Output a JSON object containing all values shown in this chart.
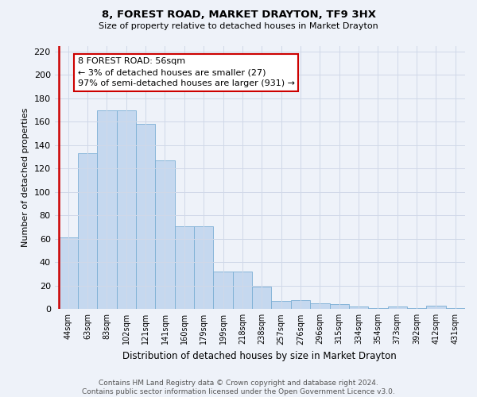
{
  "title": "8, FOREST ROAD, MARKET DRAYTON, TF9 3HX",
  "subtitle": "Size of property relative to detached houses in Market Drayton",
  "xlabel": "Distribution of detached houses by size in Market Drayton",
  "ylabel": "Number of detached properties",
  "bar_labels": [
    "44sqm",
    "63sqm",
    "83sqm",
    "102sqm",
    "121sqm",
    "141sqm",
    "160sqm",
    "179sqm",
    "199sqm",
    "218sqm",
    "238sqm",
    "257sqm",
    "276sqm",
    "296sqm",
    "315sqm",
    "334sqm",
    "354sqm",
    "373sqm",
    "392sqm",
    "412sqm",
    "431sqm"
  ],
  "bar_values": [
    61,
    133,
    170,
    170,
    158,
    127,
    71,
    71,
    32,
    32,
    19,
    7,
    8,
    5,
    4,
    2,
    1,
    2,
    1,
    3,
    1
  ],
  "bar_color": "#c5d8ef",
  "bar_edge_color": "#7aaed4",
  "highlight_color": "#cc0000",
  "annotation_text": "8 FOREST ROAD: 56sqm\n← 3% of detached houses are smaller (27)\n97% of semi-detached houses are larger (931) →",
  "annotation_box_color": "#ffffff",
  "annotation_box_edge_color": "#cc0000",
  "ylim": [
    0,
    225
  ],
  "yticks": [
    0,
    20,
    40,
    60,
    80,
    100,
    120,
    140,
    160,
    180,
    200,
    220
  ],
  "grid_color": "#d0d8e8",
  "footer": "Contains HM Land Registry data © Crown copyright and database right 2024.\nContains public sector information licensed under the Open Government Licence v3.0.",
  "bg_color": "#eef2f9"
}
